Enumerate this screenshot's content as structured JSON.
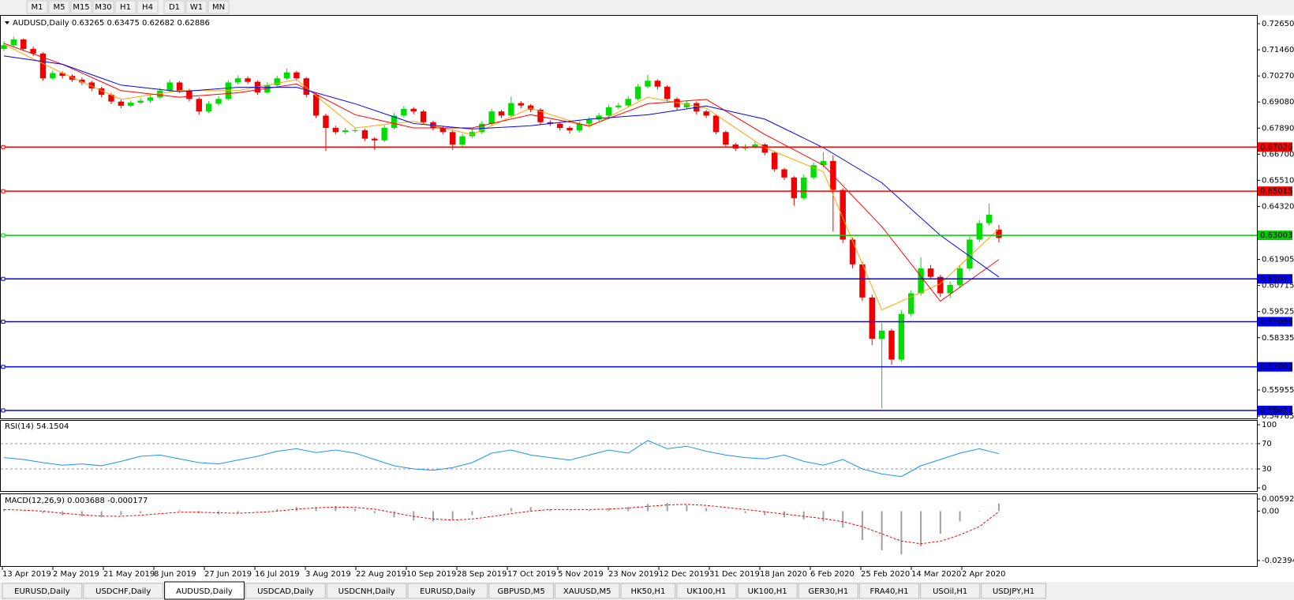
{
  "toolbar": [
    "M1",
    "M5",
    "M15",
    "M30",
    "H1",
    "H4",
    "D1",
    "W1",
    "MN"
  ],
  "tabs": [
    "EURUSD,Daily",
    "USDCHF,Daily",
    "AUDUSD,Daily",
    "USDCAD,Daily",
    "USDCNH,Daily",
    "EURUSD,Daily",
    "GBPUSD,M5",
    "XAUUSD,M5",
    "HK50,H1",
    "UK100,H1",
    "UK100,H1",
    "GER30,H1",
    "FRA40,H1",
    "USOil,H1",
    "USDJPY,H1"
  ],
  "active_tab": 2,
  "chart_data": [
    {
      "type": "candlestick",
      "title": "AUDUSD,Daily",
      "up_color": "#00dd00",
      "down_color": "#ee0000",
      "ylim": [
        0.54765,
        0.7265
      ],
      "yticks": [
        {
          "value": 0.7265,
          "label": "0.72650"
        },
        {
          "value": 0.7146,
          "label": "0.71460"
        },
        {
          "value": 0.7027,
          "label": "0.70270"
        },
        {
          "value": 0.6908,
          "label": "0.69080"
        },
        {
          "value": 0.6789,
          "label": "0.67890"
        },
        {
          "value": 0.667,
          "label": "0.66700"
        },
        {
          "value": 0.6551,
          "label": "0.65510"
        },
        {
          "value": 0.6432,
          "label": "0.64320"
        },
        0.61905,
        {
          "value": 0.60715,
          "label": "0.60715"
        },
        0.59525,
        0.58335,
        0.55955,
        0.54765
      ],
      "x_labels": [
        "13 Apr 2019",
        "2 May 2019",
        "21 May 2019",
        "8 Jun 2019",
        "27 Jun 2019",
        "16 Jul 2019",
        "3 Aug 2019",
        "22 Aug 2019",
        "10 Sep 2019",
        "28 Sep 2019",
        "17 Oct 2019",
        "5 Nov 2019",
        "23 Nov 2019",
        "12 Dec 2019",
        "31 Dec 2019",
        "18 Jan 2020",
        "6 Feb 2020",
        "25 Feb 2020",
        "14 Mar 2020",
        "2 Apr 2020"
      ],
      "levels": [
        {
          "value": 0.67026,
          "color": "#ff0000"
        },
        {
          "value": 0.65015,
          "color": "#ff0000"
        },
        {
          "value": 0.63003,
          "color": "#00cc00"
        },
        {
          "value": 0.61017,
          "color": "#0000ff"
        },
        {
          "value": 0.59066,
          "color": "#0000ff"
        },
        {
          "value": 0.57008,
          "color": "#0000ff"
        },
        {
          "value": 0.55021,
          "color": "#0000ff"
        }
      ],
      "candles": [
        [
          0.715,
          0.7185,
          0.714,
          0.7167
        ],
        [
          0.7167,
          0.7205,
          0.716,
          0.7193
        ],
        [
          0.7193,
          0.7198,
          0.714,
          0.715
        ],
        [
          0.715,
          0.716,
          0.7118,
          0.7129
        ],
        [
          0.7129,
          0.7135,
          0.7005,
          0.7016
        ],
        [
          0.7016,
          0.7052,
          0.7008,
          0.704
        ],
        [
          0.704,
          0.7048,
          0.7015,
          0.7027
        ],
        [
          0.7027,
          0.7035,
          0.7,
          0.701
        ],
        [
          0.701,
          0.702,
          0.6985,
          0.6997
        ],
        [
          0.6997,
          0.7005,
          0.6958,
          0.697
        ],
        [
          0.697,
          0.6978,
          0.693,
          0.6941
        ],
        [
          0.6941,
          0.695,
          0.6898,
          0.691
        ],
        [
          0.691,
          0.6918,
          0.688,
          0.6891
        ],
        [
          0.6891,
          0.6915,
          0.6885,
          0.6905
        ],
        [
          0.6905,
          0.6925,
          0.6898,
          0.6914
        ],
        [
          0.6914,
          0.694,
          0.6905,
          0.6929
        ],
        [
          0.6929,
          0.6972,
          0.6922,
          0.696
        ],
        [
          0.696,
          0.701,
          0.6952,
          0.6997
        ],
        [
          0.6997,
          0.7003,
          0.695,
          0.696
        ],
        [
          0.696,
          0.6968,
          0.691,
          0.6922
        ],
        [
          0.6922,
          0.693,
          0.685,
          0.6865
        ],
        [
          0.6865,
          0.6912,
          0.6858,
          0.69
        ],
        [
          0.69,
          0.6935,
          0.6892,
          0.6922
        ],
        [
          0.6922,
          0.7008,
          0.6915,
          0.6997
        ],
        [
          0.6997,
          0.703,
          0.6988,
          0.7016
        ],
        [
          0.7016,
          0.7025,
          0.699,
          0.7
        ],
        [
          0.7,
          0.7006,
          0.694,
          0.6952
        ],
        [
          0.6952,
          0.6998,
          0.6945,
          0.6985
        ],
        [
          0.6985,
          0.7028,
          0.6978,
          0.7016
        ],
        [
          0.7016,
          0.706,
          0.7008,
          0.7043
        ],
        [
          0.7043,
          0.705,
          0.7005,
          0.7016
        ],
        [
          0.7016,
          0.7022,
          0.693,
          0.6941
        ],
        [
          0.6941,
          0.6948,
          0.6835,
          0.6846
        ],
        [
          0.6846,
          0.6855,
          0.6685,
          0.679
        ],
        [
          0.679,
          0.68,
          0.676,
          0.6771
        ],
        [
          0.6771,
          0.679,
          0.6762,
          0.6779
        ],
        [
          0.6779,
          0.6792,
          0.6768,
          0.6779
        ],
        [
          0.6779,
          0.6786,
          0.673,
          0.6741
        ],
        [
          0.6741,
          0.6748,
          0.669,
          0.6733
        ],
        [
          0.6733,
          0.6802,
          0.6725,
          0.679
        ],
        [
          0.679,
          0.6858,
          0.6782,
          0.6846
        ],
        [
          0.6846,
          0.689,
          0.6838,
          0.6877
        ],
        [
          0.6877,
          0.6885,
          0.6852,
          0.6865
        ],
        [
          0.6865,
          0.6872,
          0.6805,
          0.6816
        ],
        [
          0.6816,
          0.6822,
          0.6778,
          0.679
        ],
        [
          0.679,
          0.6798,
          0.676,
          0.6771
        ],
        [
          0.6771,
          0.6778,
          0.669,
          0.6714
        ],
        [
          0.6714,
          0.6765,
          0.6705,
          0.6752
        ],
        [
          0.6752,
          0.6782,
          0.6745,
          0.6771
        ],
        [
          0.6771,
          0.682,
          0.6762,
          0.6809
        ],
        [
          0.6809,
          0.6878,
          0.68,
          0.6865
        ],
        [
          0.6865,
          0.6872,
          0.6835,
          0.6846
        ],
        [
          0.6846,
          0.6932,
          0.684,
          0.6903
        ],
        [
          0.6903,
          0.6912,
          0.688,
          0.6892
        ],
        [
          0.6892,
          0.6898,
          0.6862,
          0.6873
        ],
        [
          0.6873,
          0.688,
          0.6805,
          0.6816
        ],
        [
          0.6816,
          0.6825,
          0.6798,
          0.6809
        ],
        [
          0.6809,
          0.6815,
          0.6778,
          0.679
        ],
        [
          0.679,
          0.6798,
          0.6765,
          0.6779
        ],
        [
          0.6779,
          0.682,
          0.677,
          0.6809
        ],
        [
          0.6809,
          0.684,
          0.68,
          0.6828
        ],
        [
          0.6828,
          0.6858,
          0.6818,
          0.6846
        ],
        [
          0.6846,
          0.6896,
          0.6838,
          0.6884
        ],
        [
          0.6884,
          0.6905,
          0.6875,
          0.6892
        ],
        [
          0.6892,
          0.6935,
          0.6885,
          0.6922
        ],
        [
          0.6922,
          0.699,
          0.6915,
          0.6978
        ],
        [
          0.6978,
          0.7032,
          0.697,
          0.7005
        ],
        [
          0.7005,
          0.7012,
          0.6965,
          0.6978
        ],
        [
          0.6978,
          0.6985,
          0.691,
          0.6922
        ],
        [
          0.6922,
          0.693,
          0.6872,
          0.6884
        ],
        [
          0.6884,
          0.6915,
          0.6876,
          0.6903
        ],
        [
          0.6903,
          0.691,
          0.6852,
          0.6865
        ],
        [
          0.6865,
          0.6872,
          0.6835,
          0.6846
        ],
        [
          0.6846,
          0.6852,
          0.676,
          0.6771
        ],
        [
          0.6771,
          0.6778,
          0.6702,
          0.6714
        ],
        [
          0.6714,
          0.6722,
          0.6685,
          0.6696
        ],
        [
          0.6696,
          0.6715,
          0.6688,
          0.6703
        ],
        [
          0.6703,
          0.6728,
          0.6695,
          0.6714
        ],
        [
          0.6714,
          0.672,
          0.6665,
          0.6677
        ],
        [
          0.6677,
          0.6684,
          0.659,
          0.6601
        ],
        [
          0.6601,
          0.6608,
          0.6552,
          0.6564
        ],
        [
          0.6564,
          0.657,
          0.6435,
          0.647
        ],
        [
          0.647,
          0.6578,
          0.6462,
          0.6564
        ],
        [
          0.6564,
          0.6632,
          0.6555,
          0.662
        ],
        [
          0.662,
          0.668,
          0.661,
          0.6639
        ],
        [
          0.6639,
          0.6665,
          0.6318,
          0.6507
        ],
        [
          0.6507,
          0.6515,
          0.6265,
          0.6281
        ],
        [
          0.6281,
          0.629,
          0.615,
          0.6168
        ],
        [
          0.6168,
          0.618,
          0.6,
          0.6017
        ],
        [
          0.6017,
          0.603,
          0.58,
          0.5829
        ],
        [
          0.5829,
          0.59,
          0.5511,
          0.5866
        ],
        [
          0.5866,
          0.5875,
          0.571,
          0.5734
        ],
        [
          0.5734,
          0.596,
          0.5725,
          0.5942
        ],
        [
          0.5942,
          0.605,
          0.593,
          0.6036
        ],
        [
          0.6036,
          0.62,
          0.6025,
          0.6149
        ],
        [
          0.6149,
          0.6165,
          0.61,
          0.6111
        ],
        [
          0.6111,
          0.612,
          0.602,
          0.6036
        ],
        [
          0.6036,
          0.609,
          0.6015,
          0.6074
        ],
        [
          0.6074,
          0.6165,
          0.6065,
          0.6149
        ],
        [
          0.6149,
          0.6295,
          0.614,
          0.6281
        ],
        [
          0.6281,
          0.637,
          0.627,
          0.6356
        ],
        [
          0.6356,
          0.6445,
          0.6345,
          0.6394
        ],
        [
          0.63265,
          0.63475,
          0.62682,
          0.62886
        ]
      ],
      "ma": [
        {
          "color": "#ffa500",
          "values": [
            0.717,
            0.704,
            0.692,
            0.696,
            0.696,
            0.701,
            0.679,
            0.682,
            0.676,
            0.688,
            0.6795,
            0.693,
            0.688,
            0.67,
            0.659,
            0.596,
            0.608,
            0.633
          ]
        },
        {
          "color": "#ff0000",
          "values": [
            0.7175,
            0.708,
            0.696,
            0.693,
            0.695,
            0.699,
            0.685,
            0.679,
            0.679,
            0.685,
            0.68,
            0.69,
            0.692,
            0.676,
            0.662,
            0.634,
            0.6,
            0.619
          ]
        },
        {
          "color": "#0000ff",
          "values": [
            0.7118,
            0.708,
            0.6985,
            0.6955,
            0.6975,
            0.6975,
            0.69,
            0.681,
            0.6785,
            0.68,
            0.683,
            0.685,
            0.689,
            0.683,
            0.67,
            0.654,
            0.63,
            0.611
          ]
        }
      ]
    },
    {
      "type": "line",
      "title": "RSI(14)",
      "color": "#1e90ff",
      "ylim": [
        0,
        100
      ],
      "yticks": [
        100,
        70,
        30,
        0
      ],
      "levels": [
        70,
        30
      ],
      "values": [
        48,
        45,
        40,
        36,
        38,
        35,
        42,
        50,
        52,
        46,
        40,
        38,
        44,
        50,
        58,
        62,
        56,
        60,
        55,
        45,
        35,
        30,
        28,
        32,
        40,
        55,
        60,
        52,
        48,
        44,
        52,
        60,
        55,
        75,
        62,
        66,
        58,
        52,
        48,
        46,
        52,
        42,
        36,
        45,
        30,
        22,
        18,
        35,
        45,
        55,
        62,
        54.1504
      ]
    },
    {
      "type": "bar",
      "title": "MACD(12,26,9)",
      "color": "#a0a0a0",
      "ylim": [
        -0.023944,
        0.005923
      ],
      "yticks": [
        0.005923,
        {
          "value": 0,
          "label": "0.00"
        },
        -0.023944
      ],
      "values": [
        0.001,
        0,
        -0.001,
        -0.002,
        -0.0025,
        -0.003,
        -0.002,
        -0.001,
        0,
        0.0005,
        -0.001,
        -0.0015,
        -0.001,
        0,
        0.001,
        0.002,
        0.002,
        0.0025,
        0.001,
        -0.001,
        -0.003,
        -0.0045,
        -0.005,
        -0.004,
        -0.002,
        0,
        0.0015,
        0.002,
        0.001,
        0,
        0.0005,
        0.0015,
        0.002,
        0.0035,
        0.004,
        0.003,
        0.0015,
        0,
        -0.001,
        -0.002,
        -0.003,
        -0.004,
        -0.005,
        -0.008,
        -0.014,
        -0.019,
        -0.021,
        -0.017,
        -0.011,
        -0.005,
        0,
        0.003688
      ],
      "signal": {
        "color": "#ff0000",
        "values": [
          0.0008,
          0.0005,
          0,
          -0.001,
          -0.0018,
          -0.0024,
          -0.0025,
          -0.002,
          -0.0012,
          -0.0005,
          -0.0005,
          -0.0008,
          -0.001,
          -0.0006,
          0,
          0.001,
          0.0016,
          0.002,
          0.0018,
          0.001,
          -0.0008,
          -0.0025,
          -0.0038,
          -0.0043,
          -0.0038,
          -0.0026,
          -0.0012,
          0,
          0.0008,
          0.0008,
          0.0008,
          0.001,
          0.0015,
          0.0023,
          0.003,
          0.0033,
          0.0028,
          0.0018,
          0.0008,
          -0.0003,
          -0.0014,
          -0.0025,
          -0.0036,
          -0.0051,
          -0.0075,
          -0.011,
          -0.0145,
          -0.0158,
          -0.0146,
          -0.0115,
          -0.0075,
          -0.000177
        ]
      }
    }
  ]
}
